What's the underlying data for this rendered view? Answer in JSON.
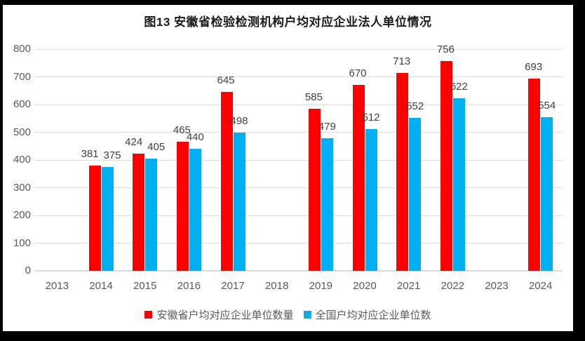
{
  "title": "图13  安徽省检验检测机构户均对应企业法人单位情况",
  "chart_data": {
    "type": "bar",
    "title": "图13 安徽省检验检测机构户均对应企业法人单位情况",
    "categories": [
      "2013",
      "2014",
      "2015",
      "2016",
      "2017",
      "2018",
      "2019",
      "2020",
      "2021",
      "2022",
      "2023",
      "2024"
    ],
    "series": [
      {
        "name": "安徽省户均对应企业单位数量",
        "color": "#FF0000",
        "values": [
          null,
          381,
          424,
          465,
          645,
          null,
          585,
          670,
          713,
          756,
          null,
          693
        ]
      },
      {
        "name": "全国户均对应企业单位数",
        "color": "#00B0F0",
        "values": [
          null,
          375,
          405,
          440,
          498,
          null,
          479,
          512,
          552,
          622,
          null,
          554
        ]
      }
    ],
    "xlabel": "",
    "ylabel": "",
    "ylim": [
      0,
      800
    ],
    "yticks": [
      0,
      100,
      200,
      300,
      400,
      500,
      600,
      700,
      800
    ],
    "grid": true,
    "legend_position": "bottom",
    "colors": {
      "axis_label": "#595959",
      "data_label": "#404040",
      "gridline": "#DCDCDC",
      "frame_border": "#000000",
      "background": "#FFFFFF"
    }
  }
}
